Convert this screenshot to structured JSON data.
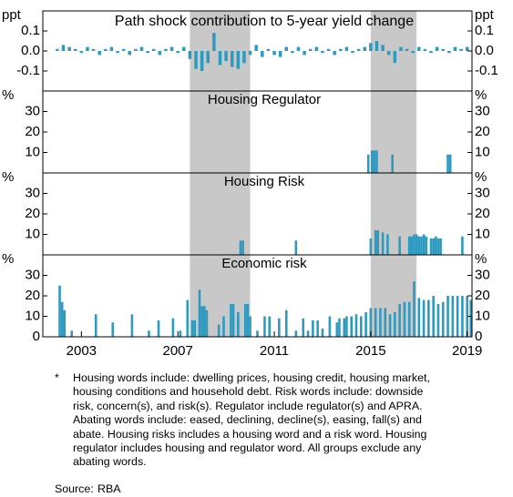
{
  "shaded_periods": [
    [
      2007.5,
      2010.0
    ],
    [
      2015.0,
      2016.9
    ]
  ],
  "chart_data": [
    {
      "type": "bar",
      "title": "Path shock contribution to 5-year yield change",
      "unit": "ppt",
      "color": "#2e9ac0",
      "xlim": [
        2001.4,
        2019.2
      ],
      "ylim": [
        -0.2,
        0.2
      ],
      "yticks": [
        -0.1,
        {
          "value": 0,
          "label": "0.0"
        },
        0.1
      ],
      "x": [
        2002,
        2002.25,
        2002.5,
        2002.75,
        2003,
        2003.25,
        2003.5,
        2003.75,
        2004,
        2004.25,
        2004.5,
        2004.75,
        2005,
        2005.25,
        2005.5,
        2005.75,
        2006,
        2006.25,
        2006.5,
        2006.75,
        2007,
        2007.25,
        2007.5,
        2007.75,
        2008,
        2008.25,
        2008.5,
        2008.75,
        2009,
        2009.25,
        2009.5,
        2009.75,
        2010,
        2010.25,
        2010.5,
        2010.75,
        2011,
        2011.25,
        2011.5,
        2011.75,
        2012,
        2012.25,
        2012.5,
        2012.75,
        2013,
        2013.25,
        2013.5,
        2013.75,
        2014,
        2014.25,
        2014.5,
        2014.75,
        2015,
        2015.25,
        2015.5,
        2015.75,
        2016,
        2016.25,
        2016.5,
        2016.75,
        2017,
        2017.25,
        2017.5,
        2017.75,
        2018,
        2018.25,
        2018.5,
        2018.75,
        2019
      ],
      "values": [
        0.01,
        0.03,
        0.02,
        0.01,
        -0.01,
        0.02,
        0.01,
        -0.02,
        0.01,
        0.02,
        -0.01,
        0.01,
        -0.02,
        0.01,
        0.02,
        -0.01,
        0.01,
        -0.02,
        0.01,
        0.02,
        -0.01,
        0.02,
        -0.04,
        -0.09,
        -0.1,
        -0.06,
        0.09,
        -0.07,
        -0.05,
        -0.08,
        -0.09,
        -0.06,
        -0.02,
        0.03,
        -0.03,
        0.01,
        -0.02,
        -0.03,
        0.02,
        -0.01,
        0.02,
        -0.02,
        0.01,
        0.02,
        -0.01,
        0.01,
        -0.02,
        0.01,
        0.02,
        -0.01,
        0.01,
        0.02,
        0.04,
        0.05,
        0.03,
        -0.02,
        -0.06,
        0.02,
        0.01,
        -0.01,
        0.02,
        0.01,
        -0.01,
        0.02,
        0.01,
        -0.01,
        0.02,
        0.01,
        0.02
      ]
    },
    {
      "type": "bar",
      "title": "Housing Regulator",
      "unit": "%",
      "color": "#2e9ac0",
      "xlim": [
        2001.4,
        2019.2
      ],
      "ylim": [
        0,
        40
      ],
      "yticks": [
        10,
        20,
        30
      ],
      "x": [
        2014.9,
        2015.05,
        2015.15,
        2015.25,
        2015.9,
        2018.2,
        2018.3
      ],
      "values": [
        9,
        11,
        11,
        11,
        9,
        9,
        9
      ]
    },
    {
      "type": "bar",
      "title": "Housing Risk",
      "unit": "%",
      "color": "#2e9ac0",
      "xlim": [
        2001.4,
        2019.2
      ],
      "ylim": [
        0,
        40
      ],
      "yticks": [
        10,
        20,
        30
      ],
      "x": [
        2009.6,
        2009.7,
        2011.9,
        2015.0,
        2015.2,
        2015.3,
        2015.5,
        2015.7,
        2016.2,
        2016.6,
        2016.7,
        2016.8,
        2016.9,
        2017.0,
        2017.1,
        2017.2,
        2017.3,
        2017.5,
        2017.6,
        2017.7,
        2017.8,
        2017.9,
        2018.8
      ],
      "values": [
        7,
        7,
        7,
        8,
        12,
        12,
        11,
        10,
        9,
        9,
        9,
        10,
        10,
        9,
        9,
        10,
        9,
        8,
        8,
        9,
        8,
        8,
        9
      ]
    },
    {
      "type": "bar",
      "title": "Economic risk",
      "unit": "%",
      "color": "#2e9ac0",
      "xlim": [
        2001.4,
        2019.2
      ],
      "ylim": [
        0,
        40
      ],
      "yticks": [
        0,
        10,
        20,
        30
      ],
      "xticks": [
        2003,
        2007,
        2011,
        2015,
        2019
      ],
      "x": [
        2002.1,
        2002.2,
        2002.3,
        2002.6,
        2003.6,
        2004.3,
        2005.1,
        2005.8,
        2006.2,
        2006.8,
        2007.1,
        2007.4,
        2007.6,
        2007.7,
        2007.9,
        2008.0,
        2008.1,
        2008.2,
        2008.7,
        2008.9,
        2009.2,
        2009.3,
        2009.5,
        2009.8,
        2009.9,
        2010.0,
        2010.3,
        2010.6,
        2010.8,
        2011.2,
        2011.5,
        2011.9,
        2012.2,
        2012.4,
        2012.6,
        2012.8,
        2013.0,
        2013.3,
        2013.6,
        2013.7,
        2013.9,
        2014.0,
        2014.2,
        2014.4,
        2014.6,
        2014.8,
        2015.0,
        2015.2,
        2015.4,
        2015.6,
        2015.8,
        2016.0,
        2016.2,
        2016.4,
        2016.6,
        2016.8,
        2017.0,
        2017.2,
        2017.4,
        2017.6,
        2017.8,
        2018.0,
        2018.2,
        2018.4,
        2018.6,
        2018.8,
        2019.0,
        2019.15
      ],
      "values": [
        25,
        17,
        13,
        3,
        11,
        7,
        11,
        3,
        8,
        9,
        3,
        18,
        8,
        8,
        23,
        15,
        15,
        13,
        6,
        10,
        16,
        16,
        12,
        16,
        16,
        10,
        3,
        10,
        10,
        9,
        13,
        3,
        9,
        3,
        8,
        8,
        4,
        10,
        7,
        9,
        9,
        10,
        10,
        11,
        10,
        12,
        14,
        14,
        14,
        14,
        11,
        12,
        16,
        17,
        17,
        27,
        19,
        18,
        18,
        20,
        16,
        17,
        20,
        20,
        20,
        20,
        20,
        18
      ]
    }
  ],
  "footnote": {
    "marker": "*",
    "lines": [
      "Housing words include: dwelling prices, housing credit, housing market,",
      "housing conditions and household debt. Risk words include: downside",
      "risk, concern(s), and risk(s). Regulator include regulator(s) and APRA.",
      "Abating words include: eased, declining, decline(s), easing, fall(s) and",
      "abate. Housing risks includes a housing word and a risk word. Housing",
      "regulator includes housing and regulator word. All groups exclude any",
      "abating words."
    ]
  },
  "source": {
    "label": "Source:",
    "text": "RBA"
  }
}
